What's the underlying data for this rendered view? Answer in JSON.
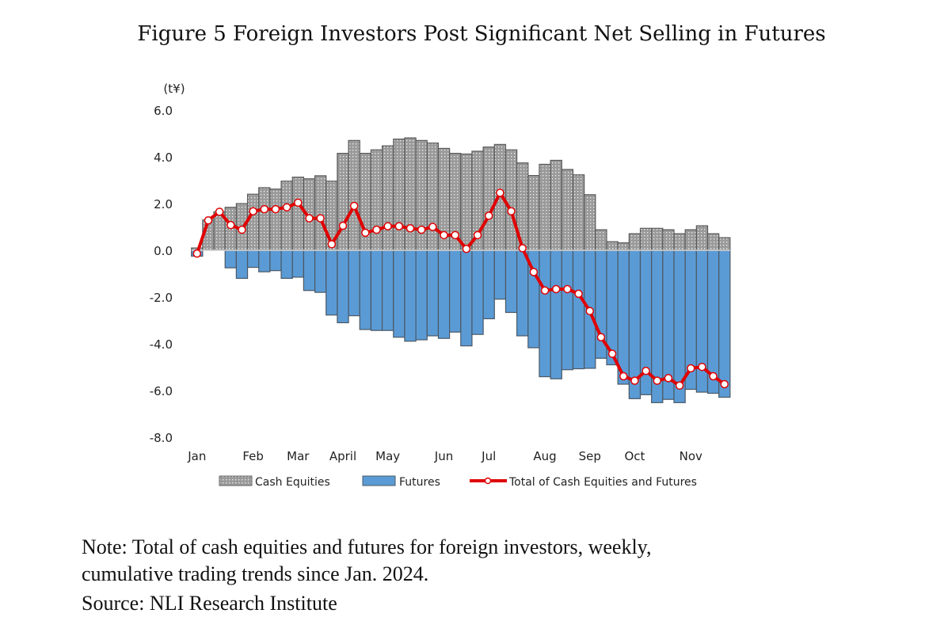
{
  "chart_data": {
    "type": "bar",
    "title": "Figure 5 Foreign Investors Post Significant Net Selling in Futures",
    "ylabel": "(t¥)",
    "xlabel": "",
    "ylim": [
      -8,
      6
    ],
    "yticks": [
      "6.0",
      "4.0",
      "2.0",
      "0.0",
      "-2.0",
      "-4.0",
      "-6.0",
      "-8.0"
    ],
    "ytick_values": [
      6,
      4,
      2,
      0,
      -2,
      -4,
      -6,
      -8
    ],
    "x_tick_labels": [
      {
        "label": "Jan",
        "week": 1
      },
      {
        "label": "Feb",
        "week": 6
      },
      {
        "label": "Mar",
        "week": 10
      },
      {
        "label": "April",
        "week": 14
      },
      {
        "label": "May",
        "week": 18
      },
      {
        "label": "Jun",
        "week": 23
      },
      {
        "label": "Jul",
        "week": 27
      },
      {
        "label": "Aug",
        "week": 32
      },
      {
        "label": "Sep",
        "week": 36
      },
      {
        "label": "Oct",
        "week": 40
      },
      {
        "label": "Nov",
        "week": 45
      }
    ],
    "grid": false,
    "legend_position": "bottom",
    "series": [
      {
        "name": "Cash Equities",
        "kind": "bar",
        "color": "#a6a6a6",
        "values": [
          0.1,
          1.3,
          1.65,
          1.84,
          2.0,
          2.4,
          2.68,
          2.62,
          2.96,
          3.13,
          3.06,
          3.19,
          2.96,
          4.15,
          4.7,
          4.15,
          4.3,
          4.47,
          4.76,
          4.81,
          4.7,
          4.59,
          4.36,
          4.15,
          4.12,
          4.24,
          4.42,
          4.53,
          4.3,
          3.74,
          3.2,
          3.68,
          3.85,
          3.46,
          3.23,
          2.38,
          0.88,
          0.37,
          0.32,
          0.71,
          0.94,
          0.94,
          0.88,
          0.71,
          0.88,
          1.05,
          0.71,
          0.54
        ]
      },
      {
        "name": "Futures",
        "kind": "bar",
        "color": "#5b9bd5",
        "values": [
          -0.25,
          0,
          0,
          -0.75,
          -1.2,
          -0.73,
          -0.92,
          -0.87,
          -1.2,
          -1.15,
          -1.72,
          -1.8,
          -2.77,
          -3.1,
          -2.8,
          -3.39,
          -3.43,
          -3.43,
          -3.72,
          -3.89,
          -3.83,
          -3.66,
          -3.77,
          -3.5,
          -4.09,
          -3.6,
          -2.93,
          -2.09,
          -2.66,
          -3.66,
          -4.17,
          -5.41,
          -5.5,
          -5.11,
          -5.07,
          -5.05,
          -4.62,
          -4.9,
          -5.73,
          -6.35,
          -6.18,
          -6.52,
          -6.38,
          -6.52,
          -5.95,
          -6.07,
          -6.12,
          -6.29
        ]
      },
      {
        "name": "Total of Cash Equities and Futures",
        "kind": "line",
        "color": "#e00000",
        "values": [
          -0.14,
          1.28,
          1.65,
          1.08,
          0.88,
          1.67,
          1.76,
          1.76,
          1.84,
          2.04,
          1.37,
          1.37,
          0.26,
          1.05,
          1.9,
          0.75,
          0.88,
          1.03,
          1.03,
          0.94,
          0.88,
          1.0,
          0.65,
          0.65,
          0.06,
          0.65,
          1.48,
          2.46,
          1.67,
          0.09,
          -0.93,
          -1.72,
          -1.66,
          -1.66,
          -1.86,
          -2.6,
          -3.72,
          -4.43,
          -5.39,
          -5.58,
          -5.16,
          -5.58,
          -5.47,
          -5.79,
          -5.05,
          -4.99,
          -5.39,
          -5.73
        ]
      }
    ]
  },
  "notes": {
    "line1": "Note: Total of cash equities and futures for foreign investors, weekly,",
    "line2": "cumulative trading trends since Jan. 2024.",
    "source": "Source: NLI Research Institute"
  }
}
